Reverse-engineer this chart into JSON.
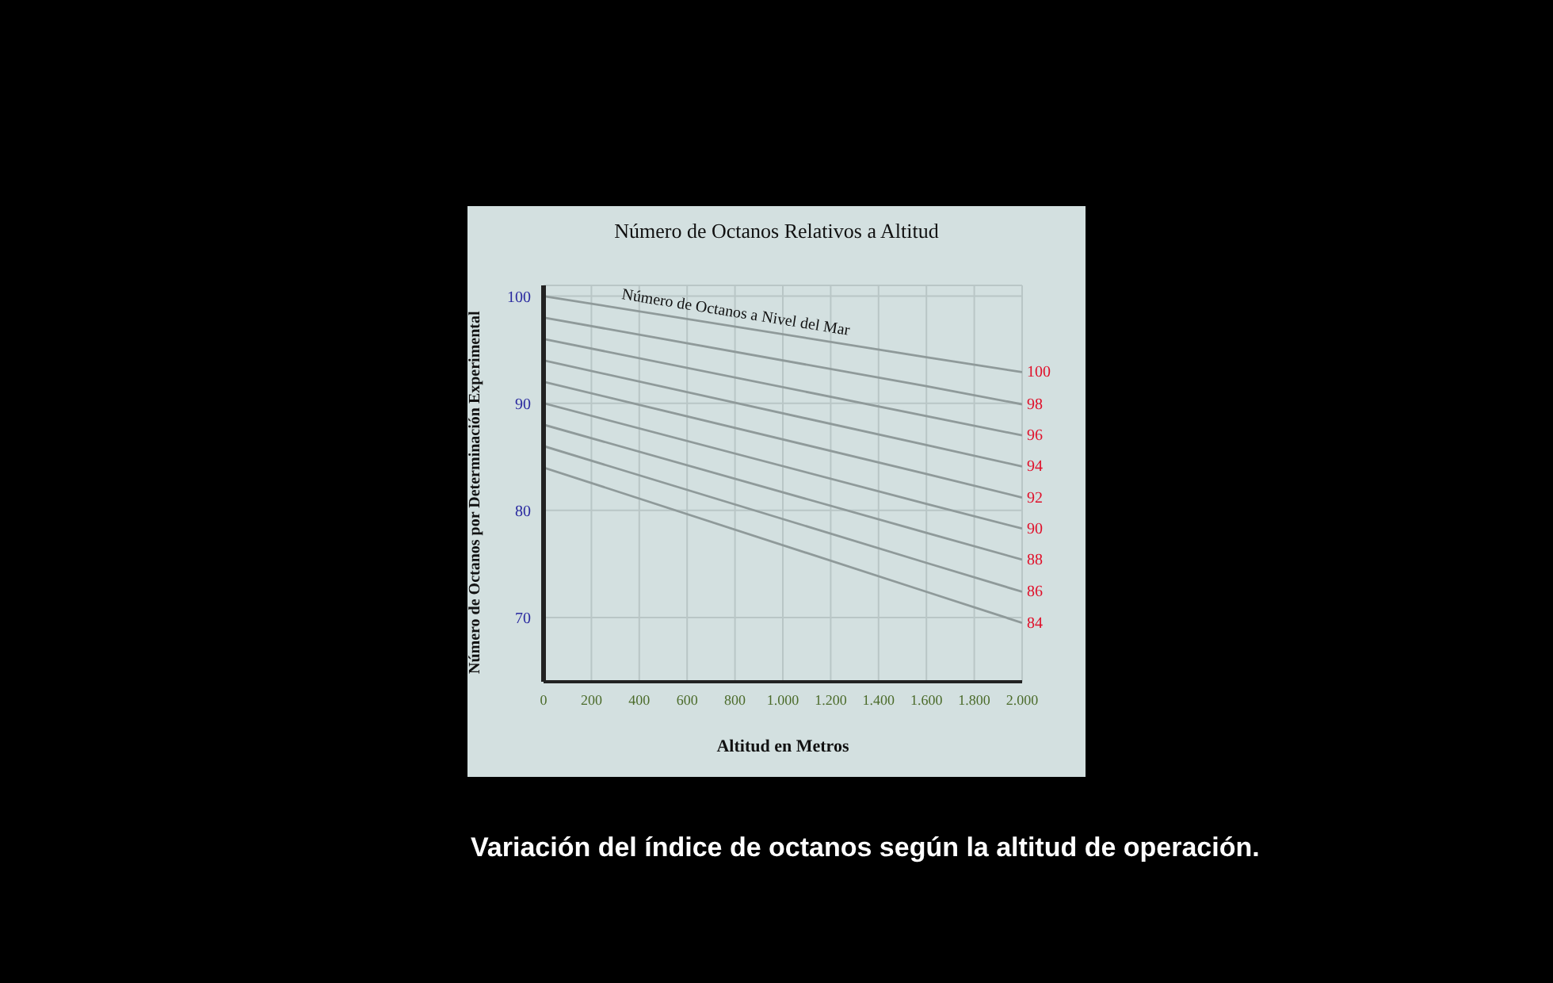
{
  "chart_data": {
    "type": "line",
    "title": "Número de Octanos Relativos a Altitud",
    "xlabel": "Altitud en Metros",
    "ylabel": "Número de Octanos por Determinación Experimental",
    "x": [
      0,
      1600,
      2000
    ],
    "series": [
      {
        "name": "100",
        "color": "#8f9a9a",
        "values": [
          100,
          94.3,
          92.9
        ]
      },
      {
        "name": "98",
        "color": "#8f9a9a",
        "values": [
          98,
          91.6,
          89.9
        ]
      },
      {
        "name": "96",
        "color": "#8f9a9a",
        "values": [
          96,
          88.8,
          87
        ]
      },
      {
        "name": "94",
        "color": "#8f9a9a",
        "values": [
          94,
          86.1,
          84.1
        ]
      },
      {
        "name": "92",
        "color": "#8f9a9a",
        "values": [
          92,
          83.4,
          81.2
        ]
      },
      {
        "name": "90",
        "color": "#8f9a9a",
        "values": [
          90,
          80.6,
          78.3
        ]
      },
      {
        "name": "88",
        "color": "#8f9a9a",
        "values": [
          88,
          77.9,
          75.4
        ]
      },
      {
        "name": "86",
        "color": "#8f9a9a",
        "values": [
          86,
          75.1,
          72.4
        ]
      },
      {
        "name": "84",
        "color": "#8f9a9a",
        "values": [
          84,
          72.4,
          69.5
        ]
      }
    ],
    "xlim": [
      0,
      2000
    ],
    "ylim": [
      64,
      101
    ],
    "xticks": [
      0,
      200,
      400,
      600,
      800,
      {
        "value": 1000,
        "label": "1.000"
      },
      {
        "value": 1200,
        "label": "1.200"
      },
      {
        "value": 1400,
        "label": "1.400"
      },
      {
        "value": 1600,
        "label": "1.600"
      },
      {
        "value": 1800,
        "label": "1.800"
      },
      {
        "value": 2000,
        "label": "2.000"
      }
    ],
    "yticks": [
      70,
      80,
      90,
      100
    ],
    "grid": true,
    "legend": false,
    "marker": "none",
    "line_style": "solid",
    "annotations": [
      "Número de Octanos a Nivel del Mar",
      "Variación del índice de octanos según la altitud de operación."
    ]
  }
}
